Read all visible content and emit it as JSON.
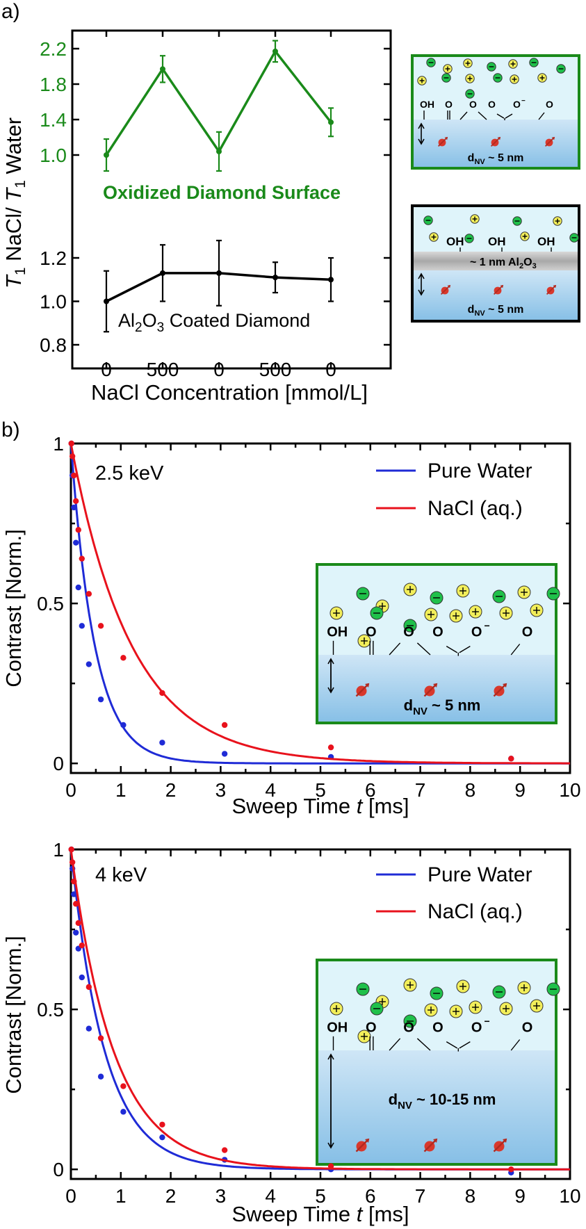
{
  "colors": {
    "oxidized": "#1a8a1a",
    "alumina": "#000000",
    "pure_water": "#1f2bd6",
    "nacl": "#e8121c",
    "water_light": "#dff4fa",
    "diamond_blue": "#a9d3ee",
    "alumina_gray": "#bdbdbd",
    "anion": "#1fc04a",
    "cation": "#f2ee5a"
  },
  "panel_a": {
    "label": "a)",
    "xlabel": "NaCl Concentration [mmol/L]",
    "ylabel_t1": "T",
    "ylabel_sub1": "1",
    "ylabel_mid": " NaCl/ ",
    "ylabel_t2": "T",
    "ylabel_sub2": "1",
    "ylabel_end": " Water",
    "oxidized_label": "Oxidized Diamond Surface",
    "alumina_label_pre": "Al",
    "alumina_label_sub1": "2",
    "alumina_label_mid": "O",
    "alumina_label_sub2": "3",
    "alumina_label_post": " Coated Diamond"
  },
  "schematics": {
    "oh": "OH",
    "o": "O",
    "o_minus": "O",
    "minus_sup": "−",
    "d_prefix": "d",
    "d_sub": "NV",
    "d5": " ~ 5 nm",
    "d10": " ~ 10-15 nm",
    "alo_layer_pre": "~ 1 nm  Al",
    "alo_sub1": "2",
    "alo_mid": "O",
    "alo_sub2": "3"
  },
  "panel_b": {
    "label": "b)",
    "xlabel_pre": "Sweep Time ",
    "xlabel_var": "t",
    "xlabel_post": " [ms]",
    "ylabel": "Contrast [Norm.]",
    "legend_pure": "Pure Water",
    "legend_nacl": "NaCl (aq.)",
    "energy_top": "2.5 keV",
    "energy_bottom": "4 keV"
  },
  "chart_data": [
    {
      "type": "line",
      "title": "",
      "xlabel": "NaCl Concentration [mmol/L]",
      "ylabel": "T1 NaCl/ T1 Water",
      "categories": [
        "0",
        "500",
        "0",
        "500",
        "0"
      ],
      "series": [
        {
          "name": "Oxidized Diamond Surface",
          "color_key": "oxidized",
          "values": [
            1.0,
            1.97,
            1.04,
            2.17,
            1.37
          ],
          "errors": [
            0.18,
            0.15,
            0.22,
            0.12,
            0.16
          ],
          "yticks": [
            "1.0",
            "1.4",
            "1.8",
            "2.2"
          ]
        },
        {
          "name": "Al2O3 Coated Diamond",
          "color_key": "alumina",
          "values": [
            1.0,
            1.13,
            1.13,
            1.11,
            1.1
          ],
          "errors": [
            0.14,
            0.13,
            0.15,
            0.07,
            0.1
          ],
          "yticks": [
            "0.8",
            "1.0",
            "1.2"
          ]
        }
      ]
    },
    {
      "type": "line",
      "title": "2.5 keV",
      "xlabel": "Sweep Time t [ms]",
      "ylabel": "Contrast [Norm.]",
      "xlim": [
        0,
        10
      ],
      "ylim": [
        -0.03,
        1.0
      ],
      "xticks": [
        "0",
        "1",
        "2",
        "3",
        "4",
        "5",
        "6",
        "7",
        "8",
        "9",
        "10"
      ],
      "yticks": [
        "0",
        "0.5",
        "1"
      ],
      "series": [
        {
          "name": "Pure Water",
          "color_key": "pure_water",
          "tau": 0.48,
          "x": [
            0.01,
            0.03,
            0.06,
            0.1,
            0.15,
            0.22,
            0.36,
            0.6,
            1.05,
            1.83,
            3.08,
            5.21,
            8.82
          ],
          "y": [
            1.0,
            0.9,
            0.8,
            0.69,
            0.55,
            0.43,
            0.31,
            0.2,
            0.12,
            0.065,
            0.03,
            0.02,
            0.015
          ]
        },
        {
          "name": "NaCl (aq.)",
          "color_key": "nacl",
          "tau": 1.22,
          "x": [
            0.01,
            0.03,
            0.06,
            0.1,
            0.15,
            0.22,
            0.36,
            0.6,
            1.05,
            1.83,
            3.08,
            5.21,
            8.82
          ],
          "y": [
            1.0,
            0.96,
            0.9,
            0.82,
            0.73,
            0.64,
            0.53,
            0.43,
            0.33,
            0.22,
            0.12,
            0.05,
            0.015
          ]
        }
      ]
    },
    {
      "type": "line",
      "title": "4 keV",
      "xlabel": "Sweep Time t [ms]",
      "ylabel": "Contrast [Norm.]",
      "xlim": [
        0,
        10
      ],
      "ylim": [
        -0.03,
        1.0
      ],
      "xticks": [
        "0",
        "1",
        "2",
        "3",
        "4",
        "5",
        "6",
        "7",
        "8",
        "9",
        "10"
      ],
      "yticks": [
        "0",
        "0.5",
        "1"
      ],
      "series": [
        {
          "name": "Pure Water",
          "color_key": "pure_water",
          "tau": 0.68,
          "x": [
            0.01,
            0.03,
            0.06,
            0.1,
            0.15,
            0.22,
            0.36,
            0.6,
            1.05,
            1.83,
            3.08,
            5.21,
            8.82
          ],
          "y": [
            1.0,
            0.94,
            0.86,
            0.74,
            0.69,
            0.6,
            0.44,
            0.29,
            0.18,
            0.1,
            0.03,
            0.0,
            -0.01
          ]
        },
        {
          "name": "NaCl (aq.)",
          "color_key": "nacl",
          "tau": 0.86,
          "x": [
            0.01,
            0.03,
            0.06,
            0.1,
            0.15,
            0.22,
            0.36,
            0.6,
            1.05,
            1.83,
            3.08,
            5.21,
            8.82
          ],
          "y": [
            1.0,
            0.96,
            0.9,
            0.83,
            0.77,
            0.7,
            0.57,
            0.41,
            0.26,
            0.14,
            0.06,
            0.01,
            0.0
          ]
        }
      ]
    }
  ]
}
